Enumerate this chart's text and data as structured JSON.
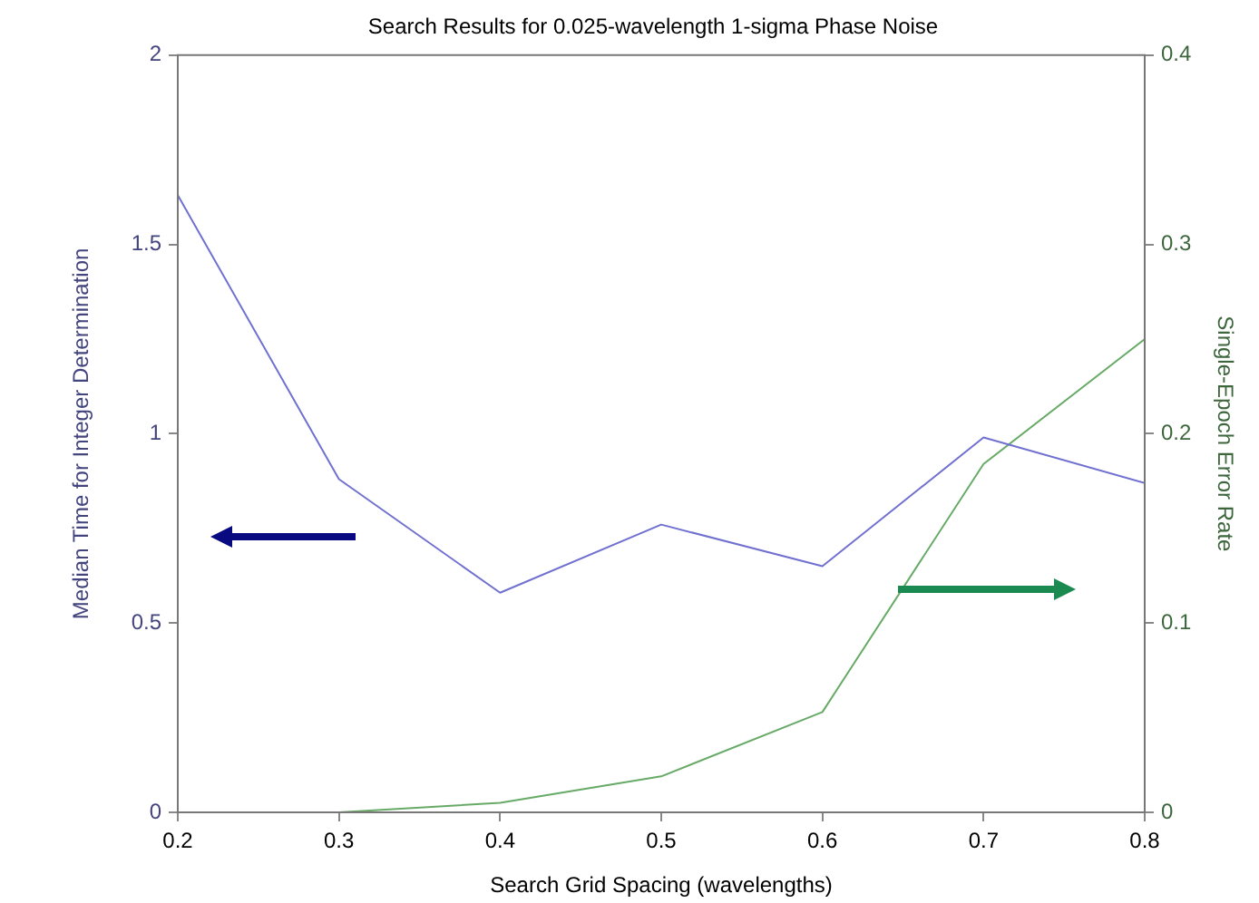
{
  "chart_data": {
    "type": "line",
    "title": "Search Results for 0.025-wavelength 1-sigma Phase Noise",
    "xlabel": "Search Grid Spacing (wavelengths)",
    "ylabel": "Median Time for Integer Determination",
    "y2label": "Single-Epoch Error Rate",
    "x": [
      0.2,
      0.3,
      0.4,
      0.5,
      0.6,
      0.7,
      0.8
    ],
    "series": [
      {
        "color": "#7070d0",
        "values": [
          1.63,
          0.88,
          0.58,
          0.76,
          0.65,
          0.99,
          0.87
        ]
      },
      {
        "color": "#66aa66",
        "axis": "y2",
        "values": [
          0,
          0,
          0.005,
          0.019,
          0.053,
          0.184,
          0.25
        ]
      }
    ],
    "xlim": [
      0.2,
      0.8
    ],
    "xticks": [
      0.2,
      0.3,
      0.4,
      0.5,
      0.6,
      0.7,
      0.8
    ],
    "ylim": [
      0,
      2
    ],
    "yticks": [
      0,
      0.5,
      1,
      1.5,
      2
    ],
    "y2lim": [
      0,
      0.4
    ],
    "y2ticks": [
      0,
      0.1,
      0.2,
      0.3,
      0.4
    ],
    "grid": false,
    "legend": false,
    "marker": "none"
  }
}
